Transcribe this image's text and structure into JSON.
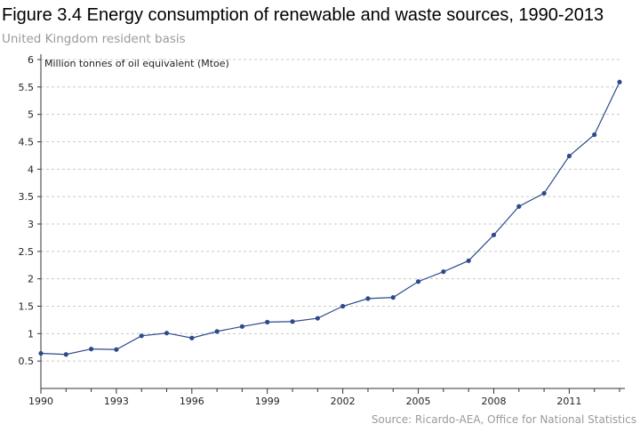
{
  "header": {
    "title": "Figure 3.4 Energy consumption of renewable and waste sources, 1990-2013",
    "subtitle": "United Kingdom resident basis"
  },
  "footer": {
    "source": "Source: Ricardo-AEA, Office for National Statistics"
  },
  "colors": {
    "series": "#2e4a8c",
    "grid": "#c8c8c8",
    "axis": "#333333"
  },
  "chart_data": {
    "type": "line",
    "title": "",
    "xlabel": "",
    "ylabel": "Million tonnes of oil equivalent (Mtoe)",
    "ylim": [
      0,
      6
    ],
    "xlim": [
      1990,
      2013
    ],
    "yticks": [
      0.5,
      1,
      1.5,
      2,
      2.5,
      3,
      3.5,
      4,
      4.5,
      5,
      5.5,
      6
    ],
    "ytick_labels": [
      "0.5",
      "1",
      "1.5",
      "2",
      "2.5",
      "3",
      "3.5",
      "4",
      "4.5",
      "5",
      "5.5",
      "6"
    ],
    "xticks": [
      1990,
      1993,
      1996,
      1999,
      2002,
      2005,
      2008,
      2011
    ],
    "xtick_labels": [
      "1990",
      "1993",
      "1996",
      "1999",
      "2002",
      "2005",
      "2008",
      "2011"
    ],
    "grid": "horizontal dashed",
    "legend": "none",
    "x": [
      1990,
      1991,
      1992,
      1993,
      1994,
      1995,
      1996,
      1997,
      1998,
      1999,
      2000,
      2001,
      2002,
      2003,
      2004,
      2005,
      2006,
      2007,
      2008,
      2009,
      2010,
      2011,
      2012,
      2013
    ],
    "y": [
      0.64,
      0.62,
      0.72,
      0.71,
      0.96,
      1.01,
      0.92,
      1.04,
      1.13,
      1.21,
      1.22,
      1.28,
      1.5,
      1.64,
      1.66,
      1.95,
      2.13,
      2.33,
      2.8,
      3.32,
      3.56,
      4.24,
      4.63,
      5.59
    ]
  }
}
